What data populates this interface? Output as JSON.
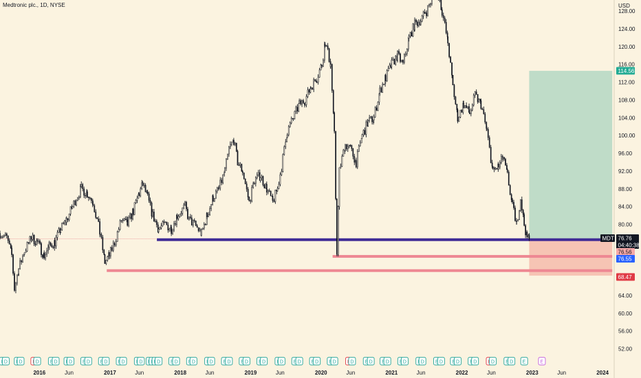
{
  "header": {
    "title": "Medtronic plc., 1D, NYSE"
  },
  "colors": {
    "background": "#fbf3e0",
    "candle": "#131722",
    "profit_zone": "#bfdcc8",
    "loss_zone": "#f6c4b4",
    "support_line": "#3f2b96",
    "red_level": "#ee8893",
    "entry_price_line": "#f0a0a0",
    "price_label_dark": "#131722",
    "target_label": "#22ab94",
    "stop_label": "#e03a44",
    "blue_label": "#2962ff",
    "pink_label": "#f7a9a8",
    "dividend_icon": "#26a69a",
    "earnings_icon_red": "#e03a44",
    "earnings_icon_purple": "#c561de"
  },
  "chart_data": {
    "type": "candlestick",
    "title": "Medtronic plc., 1D, NYSE",
    "currency": "USD",
    "symbol": "MDT",
    "last_price": 76.76,
    "countdown": "04:40:38",
    "y_axis": {
      "label": "USD",
      "ticks": [
        "128.00",
        "124.00",
        "120.00",
        "116.00",
        "112.00",
        "108.00",
        "104.00",
        "100.00",
        "96.00",
        "92.00",
        "88.00",
        "84.00",
        "80.00",
        "76.00",
        "72.00",
        "68.00",
        "64.00",
        "60.00",
        "56.00",
        "52.00"
      ],
      "range": [
        51,
        130.5
      ]
    },
    "x_axis": {
      "ticks": [
        "2016",
        "Jun",
        "2017",
        "Jun",
        "2018",
        "Jun",
        "2019",
        "Jun",
        "2020",
        "Jun",
        "2021",
        "Jun",
        "2022",
        "Jun",
        "2023",
        "Jun",
        "2024"
      ],
      "range": [
        "2015-06-10",
        "2024-03-01"
      ]
    },
    "series": [
      {
        "name": "MDT",
        "points": [
          [
            "2015-06-10",
            78
          ],
          [
            "2015-07-15",
            77
          ],
          [
            "2015-08-10",
            73
          ],
          [
            "2015-08-24",
            65.5
          ],
          [
            "2015-09-15",
            70
          ],
          [
            "2015-10-15",
            74
          ],
          [
            "2015-11-20",
            77
          ],
          [
            "2015-12-20",
            76
          ],
          [
            "2016-01-25",
            73
          ],
          [
            "2016-02-20",
            75
          ],
          [
            "2016-03-20",
            76
          ],
          [
            "2016-04-20",
            79
          ],
          [
            "2016-05-20",
            81
          ],
          [
            "2016-06-20",
            84
          ],
          [
            "2016-07-10",
            86
          ],
          [
            "2016-08-05",
            88
          ],
          [
            "2016-09-05",
            87
          ],
          [
            "2016-10-05",
            85
          ],
          [
            "2016-11-10",
            78
          ],
          [
            "2016-12-05",
            71.5
          ],
          [
            "2016-12-28",
            73
          ],
          [
            "2017-01-25",
            76
          ],
          [
            "2017-03-01",
            81
          ],
          [
            "2017-04-01",
            80
          ],
          [
            "2017-05-01",
            83
          ],
          [
            "2017-06-01",
            87
          ],
          [
            "2017-06-20",
            89
          ],
          [
            "2017-07-15",
            86
          ],
          [
            "2017-08-10",
            82
          ],
          [
            "2017-09-10",
            79
          ],
          [
            "2017-10-15",
            80
          ],
          [
            "2017-11-15",
            79
          ],
          [
            "2017-12-15",
            82
          ],
          [
            "2018-01-25",
            84
          ],
          [
            "2018-02-15",
            81
          ],
          [
            "2018-03-15",
            80
          ],
          [
            "2018-04-20",
            78
          ],
          [
            "2018-05-20",
            82
          ],
          [
            "2018-06-20",
            86
          ],
          [
            "2018-07-20",
            88
          ],
          [
            "2018-08-20",
            92
          ],
          [
            "2018-09-10",
            97
          ],
          [
            "2018-10-05",
            99
          ],
          [
            "2018-10-25",
            94
          ],
          [
            "2018-11-20",
            92
          ],
          [
            "2018-12-24",
            85
          ],
          [
            "2019-01-20",
            90
          ],
          [
            "2019-02-20",
            91
          ],
          [
            "2019-03-25",
            88
          ],
          [
            "2019-04-25",
            85
          ],
          [
            "2019-05-20",
            88
          ],
          [
            "2019-06-10",
            93
          ],
          [
            "2019-07-10",
            101
          ],
          [
            "2019-08-10",
            104
          ],
          [
            "2019-09-10",
            107
          ],
          [
            "2019-10-10",
            108
          ],
          [
            "2019-11-10",
            111
          ],
          [
            "2019-12-10",
            113
          ],
          [
            "2020-01-05",
            116
          ],
          [
            "2020-01-22",
            121
          ],
          [
            "2020-02-20",
            116
          ],
          [
            "2020-03-10",
            100
          ],
          [
            "2020-03-23",
            74
          ],
          [
            "2020-04-05",
            92
          ],
          [
            "2020-05-05",
            98
          ],
          [
            "2020-06-01",
            97
          ],
          [
            "2020-07-01",
            94
          ],
          [
            "2020-08-01",
            100
          ],
          [
            "2020-09-01",
            103
          ],
          [
            "2020-10-01",
            104
          ],
          [
            "2020-11-01",
            110
          ],
          [
            "2020-12-01",
            113
          ],
          [
            "2021-01-01",
            116
          ],
          [
            "2021-02-01",
            118
          ],
          [
            "2021-03-01",
            116
          ],
          [
            "2021-04-01",
            122
          ],
          [
            "2021-05-01",
            125
          ],
          [
            "2021-06-01",
            126
          ],
          [
            "2021-07-01",
            128
          ],
          [
            "2021-08-01",
            131
          ],
          [
            "2021-08-25",
            133
          ],
          [
            "2021-09-20",
            128
          ],
          [
            "2021-10-20",
            121
          ],
          [
            "2021-11-15",
            111
          ],
          [
            "2021-12-10",
            104
          ],
          [
            "2022-01-10",
            107
          ],
          [
            "2022-02-10",
            105
          ],
          [
            "2022-03-10",
            109
          ],
          [
            "2022-04-10",
            107
          ],
          [
            "2022-05-10",
            101
          ],
          [
            "2022-06-10",
            92
          ],
          [
            "2022-07-10",
            93
          ],
          [
            "2022-08-01",
            95
          ],
          [
            "2022-08-25",
            91
          ],
          [
            "2022-09-20",
            84
          ],
          [
            "2022-10-12",
            80
          ],
          [
            "2022-11-01",
            86
          ],
          [
            "2022-11-20",
            80
          ],
          [
            "2022-12-05",
            77
          ],
          [
            "2022-12-16",
            76.76
          ]
        ]
      }
    ],
    "annotations": {
      "support_zone": {
        "price": 76.56,
        "from": "2017-09-01",
        "to": "2024-02-20"
      },
      "levels": [
        {
          "price": 72.8,
          "from": "2020-03-01",
          "to": "2024-02-20"
        },
        {
          "price": 69.6,
          "from": "2016-12-15",
          "to": "2024-02-20"
        }
      ],
      "long_position": {
        "entry": 76.76,
        "target": 114.56,
        "stop": 68.47,
        "start": "2022-12-16",
        "end": "2024-02-20"
      },
      "price_labels": [
        {
          "text": "114.56",
          "price": 114.56,
          "style": "target"
        },
        {
          "text": "MDT",
          "price": 76.76,
          "style": "dark"
        },
        {
          "text": "76.76",
          "price": 76.76,
          "style": "dark"
        },
        {
          "text": "04:40:38",
          "price": 76.76,
          "style": "countdown"
        },
        {
          "text": "76.56",
          "price": 76.56,
          "style": "pink"
        },
        {
          "text": "76.55",
          "price": 76.55,
          "style": "blue"
        },
        {
          "text": "68.47",
          "price": 68.47,
          "style": "stop"
        }
      ]
    },
    "events": [
      {
        "date": "2015-06-25",
        "type": "E"
      },
      {
        "date": "2015-07-10",
        "type": "D"
      },
      {
        "date": "2015-09-10",
        "type": "E"
      },
      {
        "date": "2015-09-25",
        "type": "D"
      },
      {
        "date": "2015-12-05",
        "type": "E",
        "color": "red"
      },
      {
        "date": "2015-12-20",
        "type": "D"
      },
      {
        "date": "2016-03-05",
        "type": "E"
      },
      {
        "date": "2016-03-25",
        "type": "D"
      },
      {
        "date": "2016-05-25",
        "type": "E"
      },
      {
        "date": "2016-06-10",
        "type": "D"
      },
      {
        "date": "2016-08-20",
        "type": "E"
      },
      {
        "date": "2016-09-10",
        "type": "D"
      },
      {
        "date": "2016-11-20",
        "type": "E"
      },
      {
        "date": "2016-12-10",
        "type": "D"
      },
      {
        "date": "2017-02-20",
        "type": "E"
      },
      {
        "date": "2017-03-10",
        "type": "D"
      },
      {
        "date": "2017-05-25",
        "type": "E"
      },
      {
        "date": "2017-06-10",
        "type": "D"
      },
      {
        "date": "2017-07-25",
        "type": "E"
      },
      {
        "date": "2017-08-10",
        "type": "D"
      },
      {
        "date": "2017-08-25",
        "type": "E"
      },
      {
        "date": "2017-09-10",
        "type": "D"
      },
      {
        "date": "2017-11-20",
        "type": "E"
      },
      {
        "date": "2017-12-10",
        "type": "D"
      },
      {
        "date": "2018-02-20",
        "type": "E"
      },
      {
        "date": "2018-03-10",
        "type": "D"
      },
      {
        "date": "2018-05-25",
        "type": "E"
      },
      {
        "date": "2018-06-10",
        "type": "D"
      },
      {
        "date": "2018-08-20",
        "type": "E"
      },
      {
        "date": "2018-09-10",
        "type": "D"
      },
      {
        "date": "2018-11-20",
        "type": "E"
      },
      {
        "date": "2018-12-10",
        "type": "D"
      },
      {
        "date": "2019-02-20",
        "type": "E"
      },
      {
        "date": "2019-03-10",
        "type": "D"
      },
      {
        "date": "2019-05-25",
        "type": "E"
      },
      {
        "date": "2019-06-10",
        "type": "D"
      },
      {
        "date": "2019-08-20",
        "type": "E"
      },
      {
        "date": "2019-09-10",
        "type": "D"
      },
      {
        "date": "2019-11-20",
        "type": "E"
      },
      {
        "date": "2019-12-10",
        "type": "D"
      },
      {
        "date": "2020-02-20",
        "type": "E"
      },
      {
        "date": "2020-03-10",
        "type": "D"
      },
      {
        "date": "2020-05-25",
        "type": "E",
        "color": "red"
      },
      {
        "date": "2020-06-10",
        "type": "D"
      },
      {
        "date": "2020-08-25",
        "type": "E"
      },
      {
        "date": "2020-09-15",
        "type": "D"
      },
      {
        "date": "2020-11-20",
        "type": "E"
      },
      {
        "date": "2020-12-10",
        "type": "D"
      },
      {
        "date": "2021-02-20",
        "type": "E"
      },
      {
        "date": "2021-03-10",
        "type": "D"
      },
      {
        "date": "2021-05-25",
        "type": "E"
      },
      {
        "date": "2021-06-10",
        "type": "D"
      },
      {
        "date": "2021-08-25",
        "type": "E"
      },
      {
        "date": "2021-09-15",
        "type": "D"
      },
      {
        "date": "2021-11-20",
        "type": "E"
      },
      {
        "date": "2021-12-10",
        "type": "D"
      },
      {
        "date": "2022-02-20",
        "type": "E"
      },
      {
        "date": "2022-03-10",
        "type": "D"
      },
      {
        "date": "2022-05-25",
        "type": "E",
        "color": "red"
      },
      {
        "date": "2022-06-10",
        "type": "D"
      },
      {
        "date": "2022-08-25",
        "type": "E"
      },
      {
        "date": "2022-09-15",
        "type": "D"
      },
      {
        "date": "2022-11-20",
        "type": "E"
      },
      {
        "date": "2023-02-20",
        "type": "E",
        "color": "purple"
      }
    ],
    "grid": false,
    "legend": "none"
  }
}
